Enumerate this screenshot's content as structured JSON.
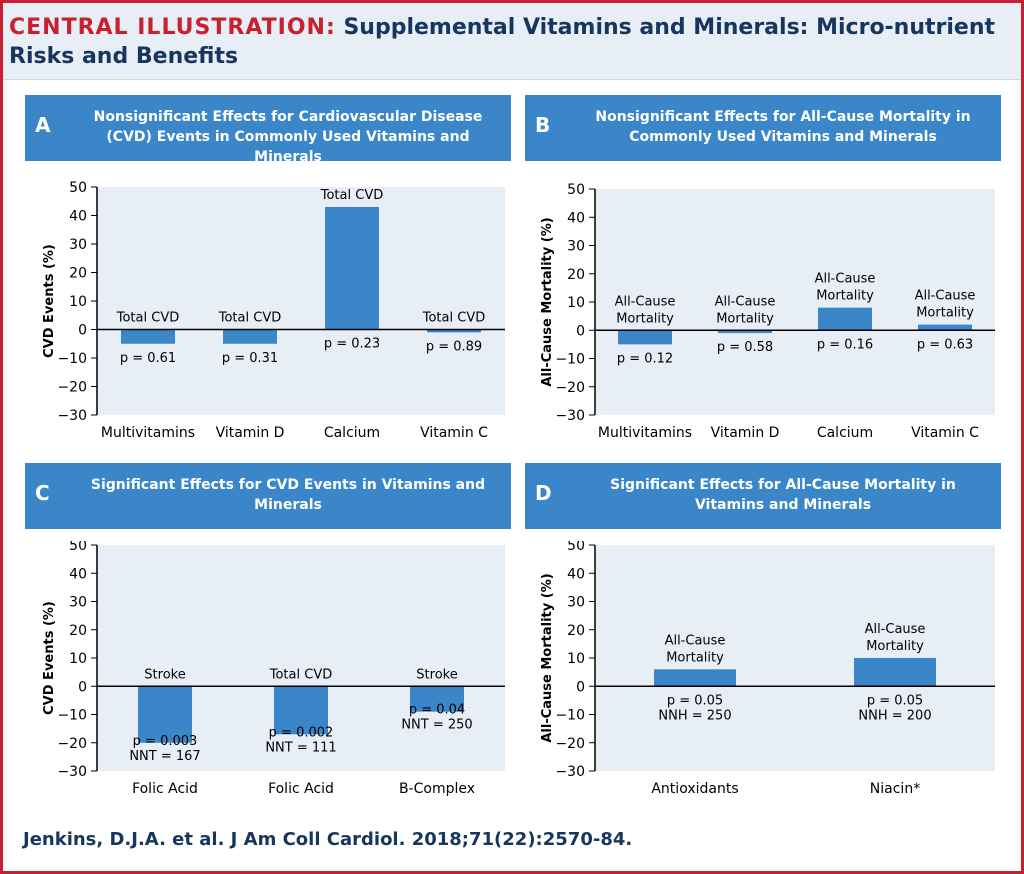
{
  "header": {
    "lead": "CENTRAL ILLUSTRATION:",
    "title": "Supplemental Vitamins and Minerals: Micro-nutrient Risks and Benefits"
  },
  "panels": [
    {
      "letter": "A",
      "title": "Nonsignificant Effects for Cardiovascular Disease (CVD) Events in Commonly Used Vitamins and Minerals"
    },
    {
      "letter": "B",
      "title": "Nonsignificant Effects for All-Cause Mortality in Commonly Used Vitamins and Minerals"
    },
    {
      "letter": "C",
      "title": "Significant Effects for CVD Events in Vitamins and Minerals"
    },
    {
      "letter": "D",
      "title": "Significant Effects for All-Cause Mortality in Vitamins and Minerals"
    }
  ],
  "citation": "Jenkins, D.J.A. et al. J Am Coll Cardiol. 2018;71(22):2570-84.",
  "colors": {
    "bar": "#3a86c8",
    "plot_bg": "#e8eef6",
    "header": "#3a86c8",
    "accent": "#c8202f",
    "text": "#17365d"
  },
  "chart_data": [
    {
      "type": "bar",
      "ylabel": "CVD Events (%)",
      "ylim": [
        -30,
        50
      ],
      "yticks": [
        50,
        40,
        30,
        20,
        10,
        0,
        -10,
        -20,
        -30
      ],
      "categories": [
        "Multivitamins",
        "Vitamin D",
        "Calcium",
        "Vitamin C"
      ],
      "values": [
        -5,
        -5,
        43,
        -1
      ],
      "bar_labels": [
        [
          "Total CVD"
        ],
        [
          "Total CVD"
        ],
        [
          "Total CVD"
        ],
        [
          "Total CVD"
        ]
      ],
      "stats": [
        [
          "p = 0.61"
        ],
        [
          "p = 0.31"
        ],
        [
          "p = 0.23"
        ],
        [
          "p = 0.89"
        ]
      ]
    },
    {
      "type": "bar",
      "ylabel": "All-Cause Mortality (%)",
      "ylim": [
        -30,
        50
      ],
      "yticks": [
        50,
        40,
        30,
        20,
        10,
        0,
        -10,
        -20,
        -30
      ],
      "categories": [
        "Multivitamins",
        "Vitamin D",
        "Calcium",
        "Vitamin C"
      ],
      "values": [
        -5,
        -1,
        8,
        2
      ],
      "bar_labels": [
        [
          "All-Cause",
          "Mortality"
        ],
        [
          "All-Cause",
          "Mortality"
        ],
        [
          "All-Cause",
          "Mortality"
        ],
        [
          "All-Cause",
          "Mortality"
        ]
      ],
      "stats": [
        [
          "p = 0.12"
        ],
        [
          "p = 0.58"
        ],
        [
          "p = 0.16"
        ],
        [
          "p = 0.63"
        ]
      ]
    },
    {
      "type": "bar",
      "ylabel": "CVD Events (%)",
      "ylim": [
        -30,
        50
      ],
      "yticks": [
        50,
        40,
        30,
        20,
        10,
        0,
        -10,
        -20,
        -30
      ],
      "categories": [
        "Folic Acid",
        "Folic Acid",
        "B-Complex"
      ],
      "values": [
        -20,
        -17,
        -9
      ],
      "bar_labels": [
        [
          "Stroke"
        ],
        [
          "Total CVD"
        ],
        [
          "Stroke"
        ]
      ],
      "stats": [
        [
          "p = 0.003",
          "NNT = 167"
        ],
        [
          "p = 0.002",
          "NNT = 111"
        ],
        [
          "p = 0.04",
          "NNT = 250"
        ]
      ]
    },
    {
      "type": "bar",
      "ylabel": "All-Cause Mortality (%)",
      "ylim": [
        -30,
        50
      ],
      "yticks": [
        50,
        40,
        30,
        20,
        10,
        0,
        -10,
        -20,
        -30
      ],
      "categories": [
        "Antioxidants",
        "Niacin*"
      ],
      "values": [
        6,
        10
      ],
      "bar_labels": [
        [
          "All-Cause",
          "Mortality"
        ],
        [
          "All-Cause",
          "Mortality"
        ]
      ],
      "stats": [
        [
          "p = 0.05",
          "NNH = 250"
        ],
        [
          "p = 0.05",
          "NNH = 200"
        ]
      ]
    }
  ]
}
